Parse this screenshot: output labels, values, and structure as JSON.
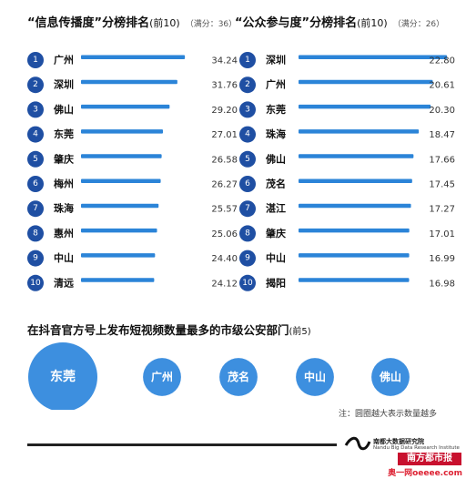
{
  "chart_data": [
    {
      "type": "bar",
      "title": "“信息传播度”分榜排名",
      "title_suffix": "(前10)",
      "note": "（满分：36）",
      "categories": [
        "广州",
        "深圳",
        "佛山",
        "东莞",
        "肇庆",
        "梅州",
        "珠海",
        "惠州",
        "中山",
        "清远"
      ],
      "ranks": [
        "1",
        "2",
        "3",
        "4",
        "5",
        "6",
        "7",
        "8",
        "9",
        "10"
      ],
      "values": [
        34.24,
        31.76,
        29.2,
        27.01,
        26.58,
        26.27,
        25.57,
        25.06,
        24.4,
        24.12
      ],
      "value_labels": [
        "34.24",
        "31.76",
        "29.20",
        "27.01",
        "26.58",
        "26.27",
        "25.57",
        "25.06",
        "24.40",
        "24.12"
      ],
      "xlim": [
        0,
        36
      ]
    },
    {
      "type": "bar",
      "title": "“公众参与度”分榜排名",
      "title_suffix": "(前10)",
      "note": "（满分：26）",
      "categories": [
        "深圳",
        "广州",
        "东莞",
        "珠海",
        "佛山",
        "茂名",
        "湛江",
        "肇庆",
        "中山",
        "揭阳"
      ],
      "ranks": [
        "1",
        "2",
        "3",
        "4",
        "5",
        "6",
        "7",
        "8",
        "9",
        "10"
      ],
      "values": [
        22.8,
        20.61,
        20.3,
        18.47,
        17.66,
        17.45,
        17.27,
        17.01,
        16.99,
        16.98
      ],
      "value_labels": [
        "22.80",
        "20.61",
        "20.30",
        "18.47",
        "17.66",
        "17.45",
        "17.27",
        "17.01",
        "16.99",
        "16.98"
      ],
      "xlim": [
        0,
        26
      ]
    },
    {
      "type": "bubble",
      "title": "在抖音官方号上发布短视频数量最多的市级公安部门",
      "title_suffix": "(前5)",
      "categories": [
        "东莞",
        "广州",
        "茂名",
        "中山",
        "佛山"
      ],
      "relative_size": [
        1.0,
        0.55,
        0.55,
        0.55,
        0.55
      ],
      "footnote": "注：圆圈越大表示数量越多"
    }
  ],
  "colors": {
    "bar": "#2b84d8",
    "rank_circle": "#1f4fa3",
    "bubble": "#3d8fdf"
  },
  "branding": {
    "institute": "南都大数据研究院",
    "institute_en": "Nandu Big Data Research Institute",
    "paper": "南方都市报",
    "watermark": "奥一网oeeee.com"
  }
}
